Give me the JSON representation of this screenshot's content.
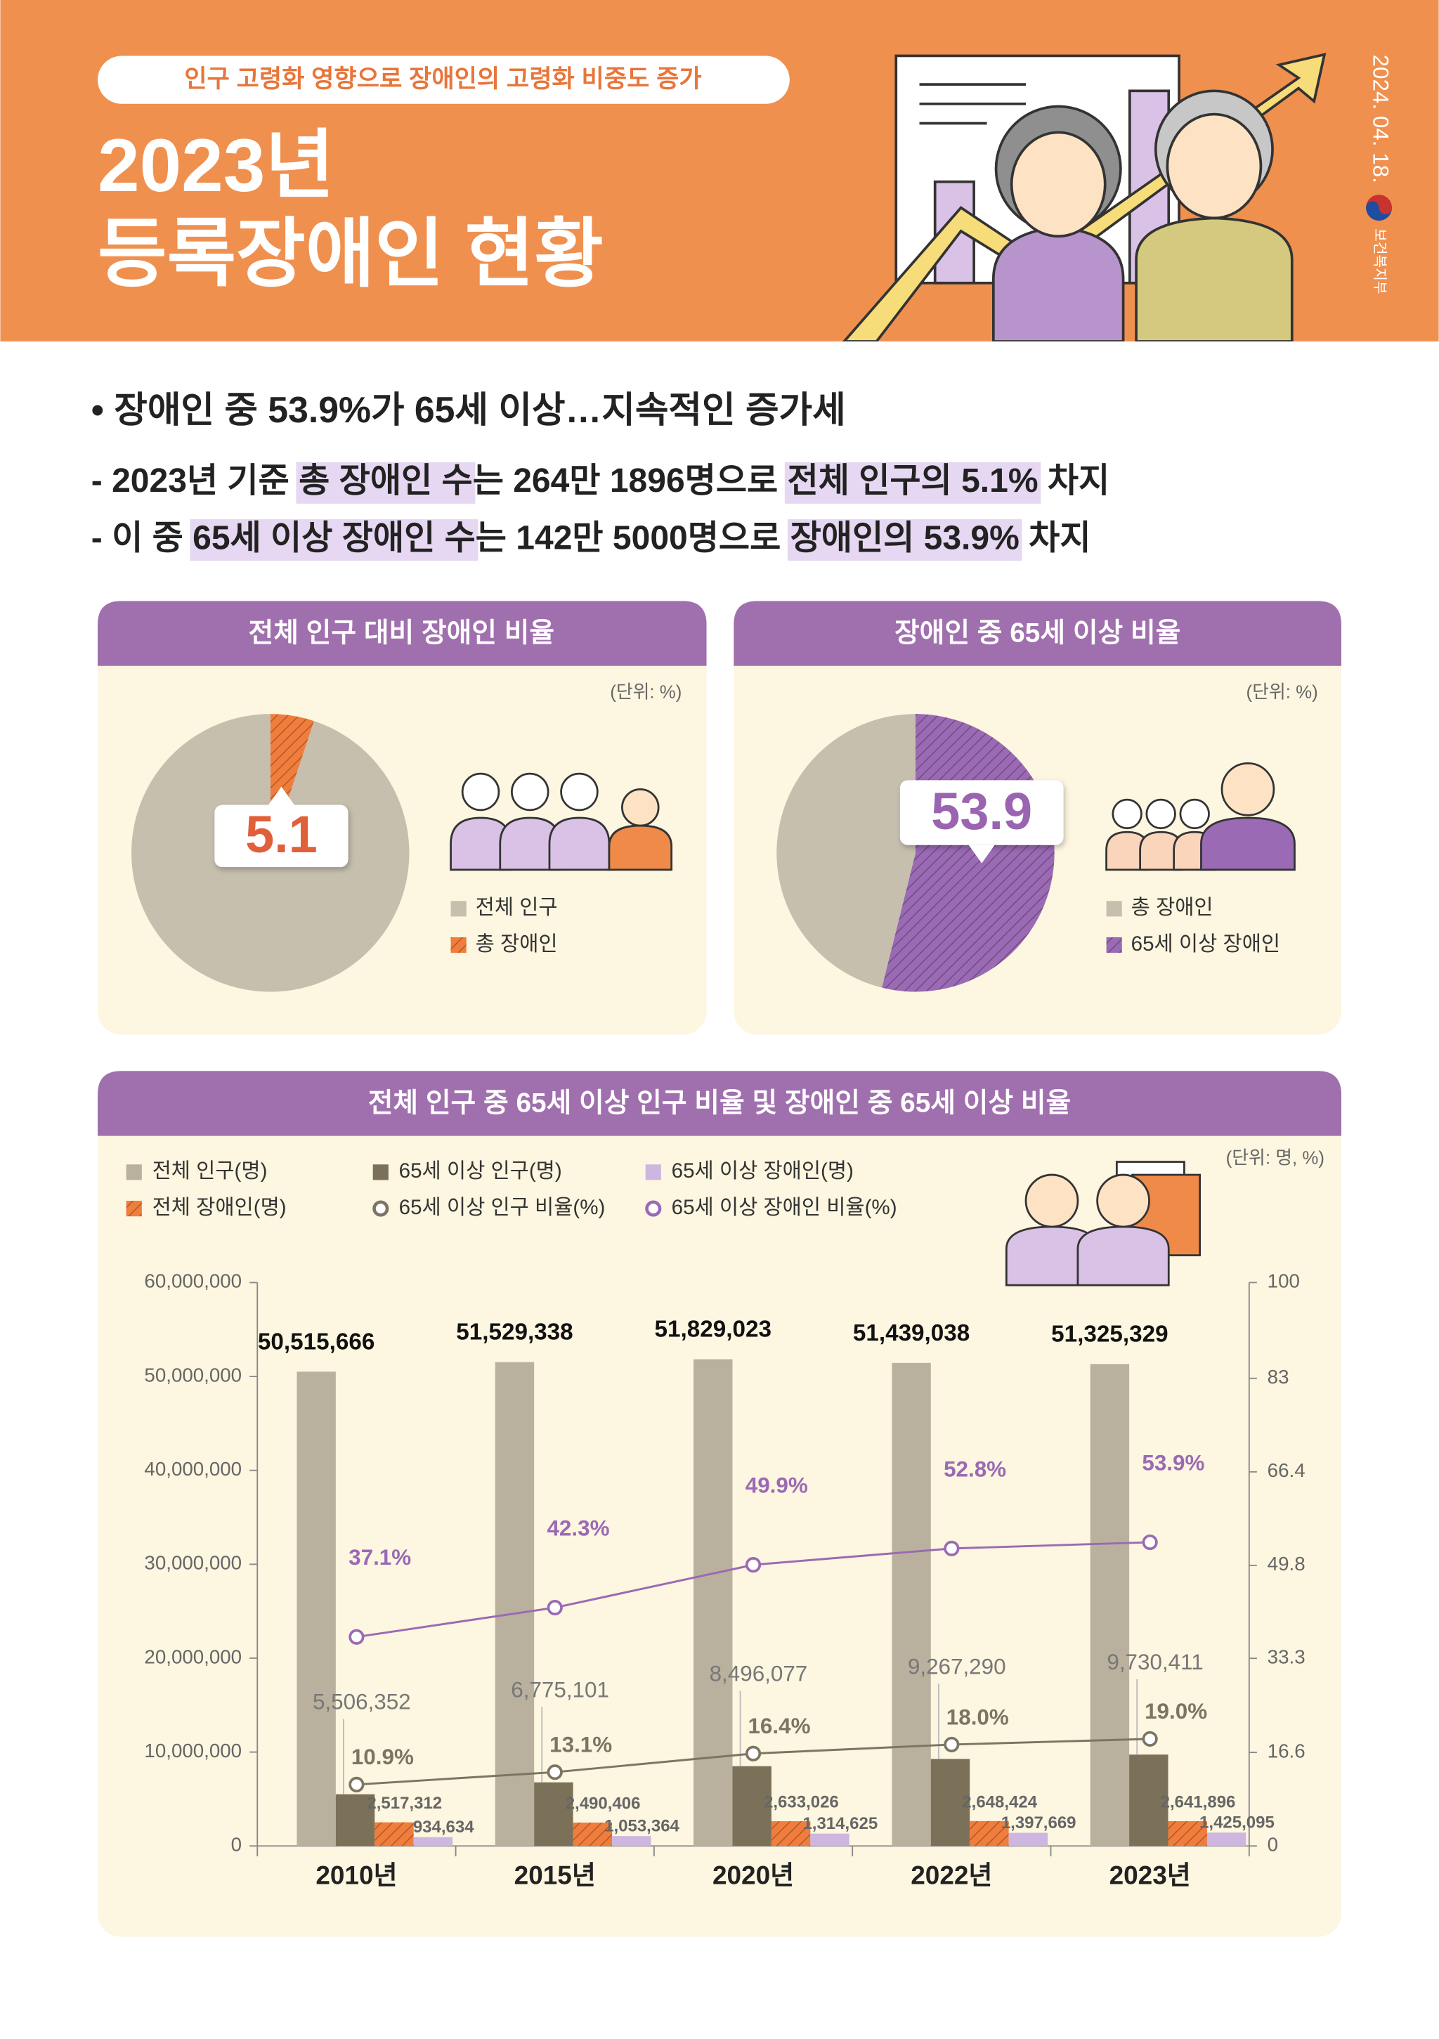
{
  "header": {
    "badge": "인구 고령화 영향으로 장애인의 고령화 비중도 증가",
    "title": [
      "2023년",
      "등록장애인 현황"
    ],
    "date": "2024. 04. 18.",
    "org": "보건복지부"
  },
  "summary": {
    "headline": "• 장애인 중 53.9%가 65세 이상…지속적인 증가세",
    "lines": [
      {
        "segments": [
          "- 2023년 기준 ",
          "총 장애인 수",
          "는 264만 1896명으로 ",
          "전체 인구의 5.1%",
          " 차지"
        ]
      },
      {
        "segments": [
          "- 이 중 ",
          "65세 이상 장애인 수",
          "는 142만 5000명으로 ",
          "장애인의 53.9%",
          " 차지"
        ]
      }
    ]
  },
  "chart_data": [
    {
      "type": "pie",
      "title": "전체 인구 대비 장애인 비율",
      "unit_note": "(단위: %)",
      "categories": [
        "전체 인구",
        "총 장애인"
      ],
      "values": [
        94.9,
        5.1
      ],
      "colors": [
        "#c6bfae",
        "#f07d3c"
      ],
      "pattern": [
        null,
        "hatch"
      ]
    },
    {
      "type": "pie",
      "title": "장애인 중 65세 이상 비율",
      "unit_note": "(단위: %)",
      "categories": [
        "총 장애인",
        "65세 이상 장애인"
      ],
      "values": [
        46.1,
        53.9
      ],
      "colors": [
        "#c6bfae",
        "#9a6ab4"
      ],
      "pattern": [
        null,
        "hatch"
      ]
    },
    {
      "type": "bar",
      "title": "전체 인구 중 65세 이상 인구 비율 및 장애인 중 65세 이상 비율",
      "unit_note": "(단위: 명, %)",
      "categories": [
        "2010년",
        "2015년",
        "2020년",
        "2022년",
        "2023년"
      ],
      "series": [
        {
          "name": "전체 인구(명)",
          "type": "bar",
          "color": "#b9b19e",
          "values": [
            50515666,
            51529338,
            51829023,
            51439038,
            51325329
          ],
          "value_labels": [
            "50,515,666",
            "51,529,338",
            "51,829,023",
            "51,439,038",
            "51,325,329"
          ]
        },
        {
          "name": "65세 이상 인구(명)",
          "type": "bar",
          "color": "#7b7159",
          "values": [
            5506352,
            6775101,
            8496077,
            9267290,
            9730411
          ],
          "value_labels": [
            "5,506,352",
            "6,775,101",
            "8,496,077",
            "9,267,290",
            "9,730,411"
          ]
        },
        {
          "name": "전체 장애인(명)",
          "type": "bar",
          "color": "#f07d3c",
          "pattern": "hatch",
          "values": [
            2517312,
            2490406,
            2633026,
            2648424,
            2641896
          ],
          "value_labels": [
            "2,517,312",
            "2,490,406",
            "2,633,026",
            "2,648,424",
            "2,641,896"
          ]
        },
        {
          "name": "65세 이상 장애인(명)",
          "type": "bar",
          "color": "#cdb6e0",
          "values": [
            934634,
            1053364,
            1314625,
            1397669,
            1425095
          ],
          "value_labels": [
            "934,634",
            "1,053,364",
            "1,314,625",
            "1,397,669",
            "1,425,095"
          ]
        },
        {
          "name": "65세 이상 인구 비율(%)",
          "type": "line",
          "axis": "y2",
          "color": "#7b7563",
          "values": [
            10.9,
            13.1,
            16.4,
            18.0,
            19.0
          ],
          "value_labels": [
            "10.9%",
            "13.1%",
            "16.4%",
            "18.0%",
            "19.0%"
          ]
        },
        {
          "name": "65세 이상 장애인 비율(%)",
          "type": "line",
          "axis": "y2",
          "color": "#9a6ab4",
          "values": [
            37.1,
            42.3,
            49.9,
            52.8,
            53.9
          ],
          "value_labels": [
            "37.1%",
            "42.3%",
            "49.9%",
            "52.8%",
            "53.9%"
          ]
        }
      ],
      "ylim": [
        0,
        60000000
      ],
      "yticks": [
        0,
        {
          "value": 10000000,
          "label": "10,000,000"
        },
        {
          "value": 20000000,
          "label": "20,000,000"
        },
        {
          "value": 30000000,
          "label": "30,000,000"
        },
        {
          "value": 40000000,
          "label": "40,000,000"
        },
        {
          "value": 50000000,
          "label": "50,000,000"
        },
        {
          "value": 60000000,
          "label": "60,000,000"
        }
      ],
      "y2lim": [
        0,
        100
      ],
      "y2ticks": [
        0,
        16.6,
        33.3,
        49.8,
        66.4,
        83,
        100
      ]
    }
  ]
}
